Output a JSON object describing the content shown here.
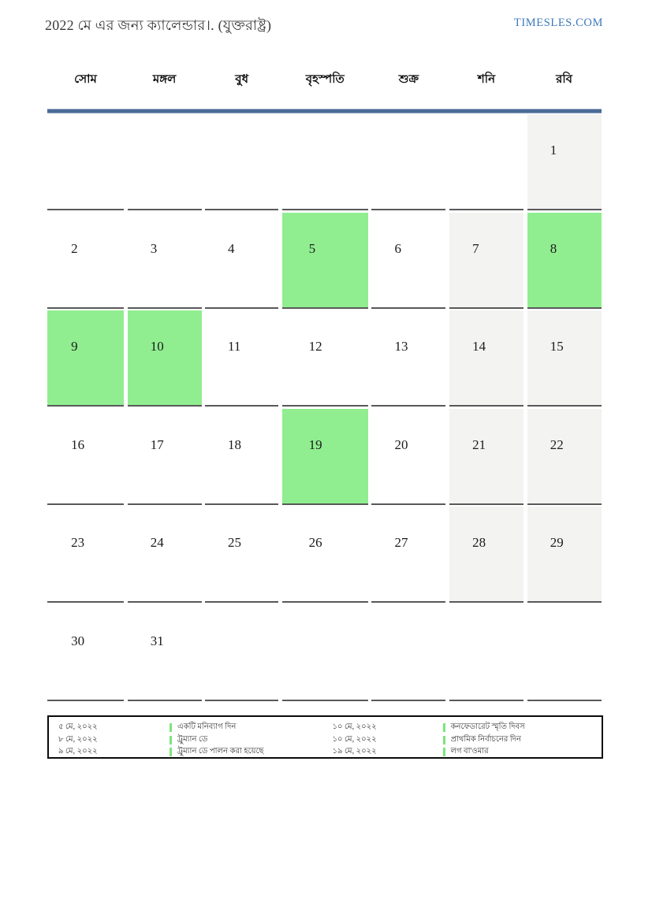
{
  "page": {
    "title": "2022 মে এর জন্য ক্যালেন্ডার।. (যুক্তরাষ্ট্র)",
    "brand": "TIMESLES.COM"
  },
  "calendar": {
    "weekdays": [
      "সোম",
      "মঙ্গল",
      "বুধ",
      "বৃহস্পতি",
      "শুক্র",
      "শনি",
      "রবি"
    ],
    "weeks": [
      [
        "",
        "",
        "",
        "",
        "",
        "",
        "1"
      ],
      [
        "2",
        "3",
        "4",
        "5",
        "6",
        "7",
        "8"
      ],
      [
        "9",
        "10",
        "11",
        "12",
        "13",
        "14",
        "15"
      ],
      [
        "16",
        "17",
        "18",
        "19",
        "20",
        "21",
        "22"
      ],
      [
        "23",
        "24",
        "25",
        "26",
        "27",
        "28",
        "29"
      ],
      [
        "30",
        "31",
        "",
        "",
        "",
        "",
        ""
      ]
    ],
    "highlighted_days": [
      5,
      8,
      9,
      10,
      19
    ],
    "weekend_gray_days": [
      1,
      7,
      14,
      15,
      21,
      22,
      28,
      29
    ],
    "colors": {
      "highlight": "#90EE90",
      "weekend": "#F3F3F2",
      "cell_border": "#595959",
      "header_rule": "#4A6B96",
      "brand": "#3C79B9",
      "legend_bar": "#7BE57B"
    }
  },
  "legend": {
    "entries": [
      {
        "date": "৫ মে, ২০২২",
        "label": "একটি মনিব্যাগ দিন"
      },
      {
        "date": "৮ মে, ২০২২",
        "label": "ট্রুম্যান ডে"
      },
      {
        "date": "৯ মে, ২০২২",
        "label": "ট্রুম্যান ডে পালন করা হয়েছে"
      },
      {
        "date": "১০ মে, ২০২২",
        "label": "কনফেডারেট স্মৃতি দিবস"
      },
      {
        "date": "১০ মে, ২০২২",
        "label": "প্রাথমিক নির্বাচনের দিন"
      },
      {
        "date": "১৯ মে, ২০২২",
        "label": "লগ বা'ওমার"
      }
    ]
  }
}
